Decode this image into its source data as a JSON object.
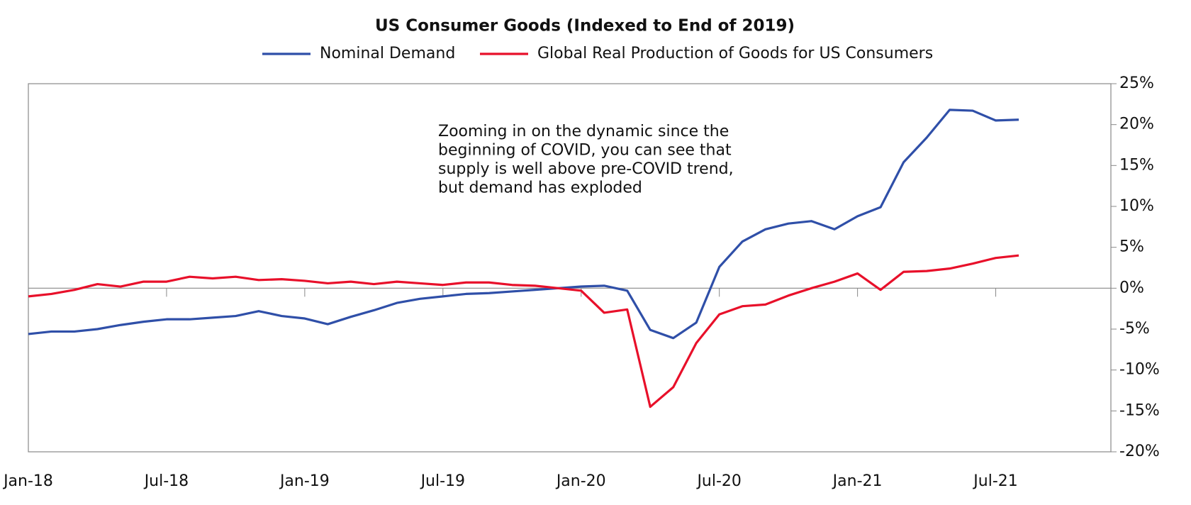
{
  "chart_data": {
    "type": "line",
    "title": "US Consumer Goods (Indexed to End of 2019)",
    "annotation": [
      "Zooming in on the dynamic since the",
      "beginning of COVID, you can see that",
      "supply is well above pre-COVID trend,",
      "but demand has exploded"
    ],
    "categories": [
      "Jan-18",
      null,
      null,
      null,
      null,
      null,
      "Jul-18",
      null,
      null,
      null,
      null,
      null,
      "Jan-19",
      null,
      null,
      null,
      null,
      null,
      "Jul-19",
      null,
      null,
      null,
      null,
      null,
      "Jan-20",
      null,
      null,
      null,
      null,
      null,
      "Jul-20",
      null,
      null,
      null,
      null,
      null,
      "Jan-21",
      null,
      null,
      null,
      null,
      null,
      "Jul-21",
      null,
      null,
      null,
      null,
      null
    ],
    "series": [
      {
        "name": "Nominal Demand",
        "color": "#2f4fa8",
        "values": [
          -5.6,
          -5.3,
          -5.3,
          -5.0,
          -4.5,
          -4.1,
          -3.8,
          -3.8,
          -3.6,
          -3.4,
          -2.8,
          -3.4,
          -3.7,
          -4.4,
          -3.5,
          -2.7,
          -1.8,
          -1.3,
          -1.0,
          -0.7,
          -0.6,
          -0.4,
          -0.2,
          0,
          0.2,
          0.3,
          -0.3,
          -5.1,
          -6.1,
          -4.2,
          2.6,
          5.7,
          7.2,
          7.9,
          8.2,
          7.2,
          8.8,
          9.9,
          15.4,
          18.4,
          21.8,
          21.7,
          20.5,
          20.6,
          null,
          null,
          null,
          null
        ]
      },
      {
        "name": "Global Real Production of Goods for US Consumers",
        "color": "#e8102a",
        "values": [
          -1.0,
          -0.7,
          -0.2,
          0.5,
          0.2,
          0.8,
          0.8,
          1.4,
          1.2,
          1.4,
          1.0,
          1.1,
          0.9,
          0.6,
          0.8,
          0.5,
          0.8,
          0.6,
          0.4,
          0.7,
          0.7,
          0.4,
          0.3,
          0,
          -0.3,
          -3.0,
          -2.6,
          -14.5,
          -12.1,
          -6.7,
          -3.2,
          -2.2,
          -2.0,
          -0.9,
          0,
          0.8,
          1.8,
          -0.2,
          2.0,
          2.1,
          2.4,
          3.0,
          3.7,
          4.0,
          null,
          null,
          null,
          null
        ]
      }
    ],
    "ylim": [
      -20,
      25
    ],
    "yticks": [
      {
        "value": -20,
        "label": "-20%"
      },
      {
        "value": -15,
        "label": "-15%"
      },
      {
        "value": -10,
        "label": "-10%"
      },
      {
        "value": -5,
        "label": "-5%"
      },
      {
        "value": 0,
        "label": "0%"
      },
      {
        "value": 5,
        "label": "5%"
      },
      {
        "value": 10,
        "label": "10%"
      },
      {
        "value": 15,
        "label": "15%"
      },
      {
        "value": 20,
        "label": "20%"
      },
      {
        "value": 25,
        "label": "25%"
      }
    ],
    "legend": "top"
  }
}
